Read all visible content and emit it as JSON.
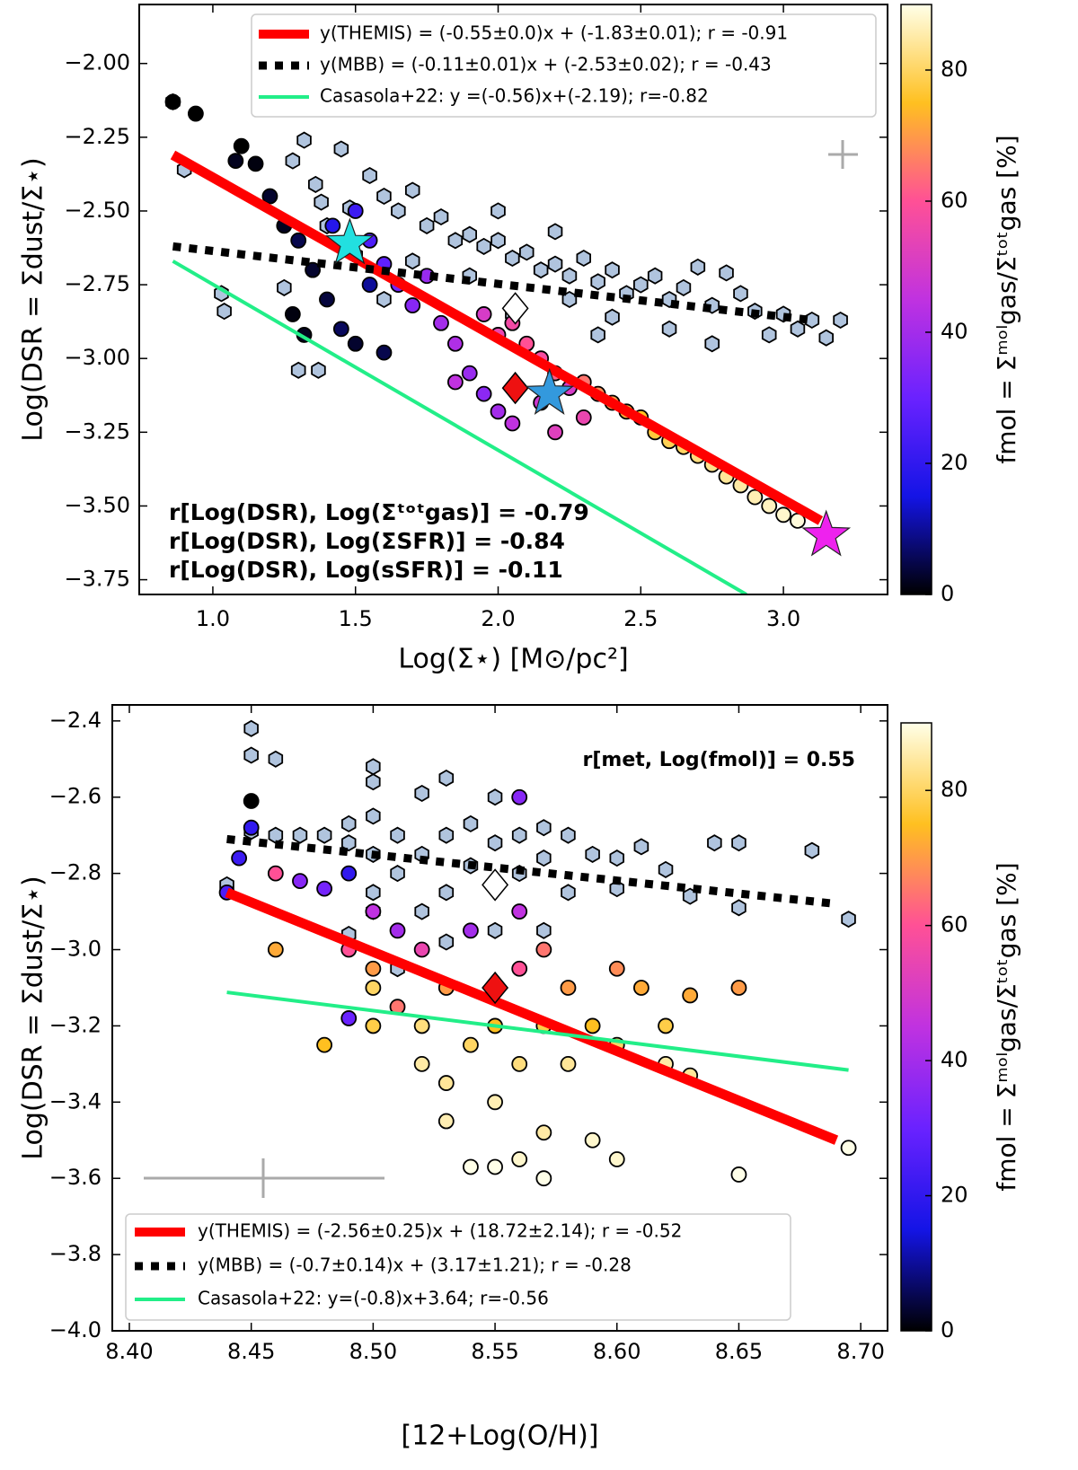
{
  "chart_data": [
    {
      "type": "scatter",
      "xlabel": "Log(Σ⋆) [M⊙/pc²]",
      "ylabel": "Log(DSR = Σdust/Σ⋆)",
      "xlim": [
        0.742,
        3.365
      ],
      "ylim": [
        -3.8,
        -1.8
      ],
      "xticks": [
        {
          "value": 1.0,
          "label": "1.0"
        },
        {
          "value": 1.5,
          "label": "1.5"
        },
        {
          "value": 2.0,
          "label": "2.0"
        },
        {
          "value": 2.5,
          "label": "2.5"
        },
        {
          "value": 3.0,
          "label": "3.0"
        }
      ],
      "yticks": [
        {
          "value": -2.0,
          "label": "−2.00"
        },
        {
          "value": -2.25,
          "label": "−2.25"
        },
        {
          "value": -2.5,
          "label": "−2.50"
        },
        {
          "value": -2.75,
          "label": "−2.75"
        },
        {
          "value": -3.0,
          "label": "−3.00"
        },
        {
          "value": -3.25,
          "label": "−3.25"
        },
        {
          "value": -3.5,
          "label": "−3.50"
        },
        {
          "value": -3.75,
          "label": "−3.75"
        }
      ],
      "legend": "upper right",
      "annotations": [
        "r[Log(DSR), Log(Σᵗᵒᵗgas)] =  -0.79",
        "r[Log(DSR), Log(ΣSFR)] =  -0.84",
        "r[Log(DSR), Log(sSFR)] =  -0.11"
      ],
      "colorbar": {
        "label": "fmol = Σᵐᵒˡgas/Σᵗᵒᵗgas [%]",
        "lim": [
          0,
          90
        ],
        "ticks": [
          0,
          20,
          40,
          60,
          80
        ],
        "cmap": [
          "#000000",
          "#1414e6",
          "#6a22ff",
          "#c032e0",
          "#ff5096",
          "#ffc020",
          "#ffffe8"
        ]
      },
      "series": [
        {
          "marker": "hexagon",
          "color": "#b0c4de",
          "x": [
            0.86,
            0.9,
            1.03,
            1.04,
            1.28,
            1.32,
            1.36,
            1.38,
            1.4,
            1.45,
            1.48,
            1.3,
            1.37,
            1.5,
            1.55,
            1.6,
            1.65,
            1.7,
            1.75,
            1.8,
            1.85,
            1.9,
            1.95,
            2.0,
            2.05,
            2.1,
            2.15,
            2.2,
            2.25,
            2.3,
            2.35,
            2.4,
            2.45,
            2.5,
            2.55,
            2.6,
            2.65,
            2.7,
            2.75,
            2.8,
            2.85,
            2.9,
            2.95,
            3.0,
            3.05,
            3.1,
            3.15,
            3.2,
            2.25,
            2.4,
            2.6,
            2.75,
            1.9,
            2.0,
            2.2,
            1.7,
            1.6,
            2.05,
            2.35,
            1.25
          ],
          "y": [
            -2.13,
            -2.36,
            -2.78,
            -2.84,
            -2.33,
            -2.26,
            -2.41,
            -2.47,
            -2.55,
            -2.29,
            -2.49,
            -3.04,
            -3.04,
            -2.65,
            -2.38,
            -2.45,
            -2.5,
            -2.43,
            -2.55,
            -2.52,
            -2.6,
            -2.58,
            -2.62,
            -2.6,
            -2.66,
            -2.64,
            -2.7,
            -2.68,
            -2.72,
            -2.66,
            -2.74,
            -2.7,
            -2.78,
            -2.75,
            -2.72,
            -2.8,
            -2.76,
            -2.69,
            -2.82,
            -2.71,
            -2.78,
            -2.84,
            -2.92,
            -2.85,
            -2.9,
            -2.87,
            -2.93,
            -2.87,
            -2.8,
            -2.86,
            -2.9,
            -2.95,
            -2.72,
            -2.5,
            -2.57,
            -2.67,
            -2.8,
            -2.85,
            -2.92,
            -2.76
          ]
        },
        {
          "marker": "circle",
          "x": [
            0.86,
            0.94,
            1.08,
            1.1,
            1.15,
            1.2,
            1.25,
            1.3,
            1.35,
            1.28,
            1.32,
            1.4,
            1.45,
            1.5,
            1.55,
            1.6,
            1.42,
            1.5,
            1.55,
            1.6,
            1.65,
            1.7,
            1.75,
            1.8,
            1.85,
            1.9,
            1.95,
            2.0,
            2.05,
            1.95,
            2.0,
            2.05,
            2.1,
            2.15,
            2.2,
            2.25,
            2.3,
            2.35,
            2.4,
            2.45,
            2.5,
            2.55,
            2.6,
            2.65,
            2.7,
            2.75,
            2.8,
            2.85,
            2.9,
            2.95,
            3.0,
            3.05,
            2.3,
            2.15,
            1.85,
            2.2
          ],
          "y": [
            -2.13,
            -2.17,
            -2.33,
            -2.28,
            -2.34,
            -2.45,
            -2.55,
            -2.6,
            -2.7,
            -2.85,
            -2.92,
            -2.8,
            -2.9,
            -2.95,
            -2.75,
            -2.98,
            -2.55,
            -2.5,
            -2.6,
            -2.68,
            -2.75,
            -2.82,
            -2.72,
            -2.88,
            -2.95,
            -3.05,
            -3.12,
            -3.18,
            -3.22,
            -2.85,
            -2.92,
            -2.88,
            -2.95,
            -3.0,
            -3.05,
            -3.1,
            -3.08,
            -3.12,
            -3.15,
            -3.18,
            -3.2,
            -3.25,
            -3.28,
            -3.3,
            -3.33,
            -3.36,
            -3.4,
            -3.43,
            -3.47,
            -3.5,
            -3.53,
            -3.55,
            -3.2,
            -3.15,
            -3.08,
            -3.25
          ],
          "c": [
            0,
            0,
            2,
            0,
            1,
            3,
            2,
            5,
            3,
            1,
            2,
            4,
            6,
            3,
            10,
            5,
            18,
            22,
            25,
            28,
            32,
            35,
            38,
            40,
            42,
            38,
            36,
            40,
            45,
            50,
            55,
            57,
            60,
            58,
            62,
            50,
            65,
            68,
            70,
            72,
            75,
            77,
            79,
            80,
            82,
            83,
            84,
            85,
            86,
            87,
            88,
            89,
            55,
            48,
            45,
            52
          ]
        },
        {
          "name": "y(THEMIS) = (-0.55±0.0)x + (-1.83±0.01); r = -0.91",
          "linestyle": "solid",
          "color": "#ff0000",
          "x": [
            0.86,
            3.13
          ],
          "y": [
            -2.31,
            -3.55
          ]
        },
        {
          "name": "y(MBB) = (-0.11±0.01)x + (-2.53±0.02); r = -0.43",
          "linestyle": "dotted",
          "color": "#000000",
          "x": [
            0.86,
            3.1
          ],
          "y": [
            -2.62,
            -2.87
          ]
        },
        {
          "name": "Casasola+22: y =(-0.56)x+(-2.19); r=-0.82",
          "linestyle": "solid",
          "color": "#22ee88",
          "x": [
            0.86,
            2.87
          ],
          "y": [
            -2.67,
            -3.8
          ]
        },
        {
          "marker": "diamond",
          "color": "#ffffff",
          "x": [
            2.06
          ],
          "y": [
            -2.83
          ]
        },
        {
          "marker": "diamond",
          "color": "#ee1111",
          "x": [
            2.06
          ],
          "y": [
            -3.1
          ]
        },
        {
          "marker": "star",
          "color": "#22e0e0",
          "x": [
            1.48
          ],
          "y": [
            -2.61
          ]
        },
        {
          "marker": "star",
          "color": "#3399dd",
          "x": [
            2.18
          ],
          "y": [
            -3.12
          ]
        },
        {
          "marker": "star",
          "color": "#ee22ee",
          "x": [
            3.15
          ],
          "y": [
            -3.6
          ]
        }
      ]
    },
    {
      "type": "scatter",
      "xlabel": "[12+Log(O/H)]",
      "ylabel": "Log(DSR = Σdust/Σ⋆)",
      "xlim": [
        8.393,
        8.711
      ],
      "ylim": [
        -4.0,
        -2.358
      ],
      "xticks": [
        {
          "value": 8.4,
          "label": "8.40"
        },
        {
          "value": 8.45,
          "label": "8.45"
        },
        {
          "value": 8.5,
          "label": "8.50"
        },
        {
          "value": 8.55,
          "label": "8.55"
        },
        {
          "value": 8.6,
          "label": "8.60"
        },
        {
          "value": 8.65,
          "label": "8.65"
        },
        {
          "value": 8.7,
          "label": "8.70"
        }
      ],
      "yticks": [
        {
          "value": -2.4,
          "label": "−2.4"
        },
        {
          "value": -2.6,
          "label": "−2.6"
        },
        {
          "value": -2.8,
          "label": "−2.8"
        },
        {
          "value": -3.0,
          "label": "−3.0"
        },
        {
          "value": -3.2,
          "label": "−3.2"
        },
        {
          "value": -3.4,
          "label": "−3.4"
        },
        {
          "value": -3.6,
          "label": "−3.6"
        },
        {
          "value": -3.8,
          "label": "−3.8"
        },
        {
          "value": -4.0,
          "label": "−4.0"
        }
      ],
      "legend": "lower left",
      "annotations": [
        "r[met, Log(fmol)] = 0.55"
      ],
      "colorbar": {
        "label": "fmol = Σᵐᵒˡgas/Σᵗᵒᵗgas [%]",
        "lim": [
          0,
          90
        ],
        "ticks": [
          0,
          20,
          40,
          60,
          80
        ],
        "cmap": [
          "#000000",
          "#1414e6",
          "#6a22ff",
          "#c032e0",
          "#ff5096",
          "#ffc020",
          "#ffffe8"
        ]
      },
      "series": [
        {
          "marker": "hexagon",
          "color": "#b0c4de",
          "x": [
            8.44,
            8.45,
            8.45,
            8.45,
            8.46,
            8.46,
            8.47,
            8.48,
            8.49,
            8.49,
            8.5,
            8.5,
            8.5,
            8.5,
            8.5,
            8.5,
            8.51,
            8.51,
            8.52,
            8.52,
            8.52,
            8.53,
            8.53,
            8.53,
            8.54,
            8.54,
            8.55,
            8.55,
            8.55,
            8.56,
            8.56,
            8.57,
            8.57,
            8.58,
            8.58,
            8.59,
            8.6,
            8.6,
            8.61,
            8.62,
            8.63,
            8.64,
            8.65,
            8.65,
            8.68,
            8.695,
            8.49,
            8.51,
            8.53,
            8.57
          ],
          "y": [
            -2.83,
            -2.42,
            -2.49,
            -2.69,
            -2.5,
            -2.7,
            -2.7,
            -2.7,
            -2.67,
            -2.72,
            -2.52,
            -2.56,
            -2.65,
            -2.75,
            -2.85,
            -2.9,
            -2.7,
            -2.8,
            -2.59,
            -2.75,
            -2.9,
            -2.55,
            -2.7,
            -2.85,
            -2.67,
            -2.78,
            -2.6,
            -2.72,
            -2.95,
            -2.7,
            -2.8,
            -2.68,
            -2.76,
            -2.7,
            -2.85,
            -2.75,
            -2.76,
            -2.84,
            -2.73,
            -2.79,
            -2.86,
            -2.72,
            -2.72,
            -2.89,
            -2.74,
            -2.92,
            -2.96,
            -3.05,
            -2.98,
            -2.95
          ]
        },
        {
          "marker": "circle",
          "x": [
            8.45,
            8.45,
            8.445,
            8.44,
            8.46,
            8.46,
            8.47,
            8.48,
            8.48,
            8.49,
            8.49,
            8.49,
            8.5,
            8.5,
            8.5,
            8.5,
            8.51,
            8.51,
            8.52,
            8.52,
            8.52,
            8.53,
            8.53,
            8.53,
            8.54,
            8.54,
            8.54,
            8.55,
            8.55,
            8.55,
            8.56,
            8.56,
            8.56,
            8.56,
            8.56,
            8.57,
            8.57,
            8.57,
            8.57,
            8.58,
            8.58,
            8.59,
            8.59,
            8.6,
            8.6,
            8.61,
            8.62,
            8.62,
            8.63,
            8.63,
            8.65,
            8.65,
            8.695,
            8.6
          ],
          "y": [
            -2.61,
            -2.68,
            -2.76,
            -2.85,
            -2.8,
            -3.0,
            -2.82,
            -2.84,
            -3.25,
            -2.8,
            -3.0,
            -3.18,
            -2.9,
            -3.05,
            -3.1,
            -3.2,
            -2.95,
            -3.15,
            -3.0,
            -3.2,
            -3.3,
            -3.1,
            -3.35,
            -3.45,
            -2.95,
            -3.25,
            -3.57,
            -3.2,
            -3.4,
            -3.57,
            -2.6,
            -2.9,
            -3.05,
            -3.3,
            -3.55,
            -3.0,
            -3.2,
            -3.48,
            -3.6,
            -3.1,
            -3.3,
            -3.2,
            -3.5,
            -3.05,
            -3.25,
            -3.1,
            -3.2,
            -3.3,
            -3.12,
            -3.33,
            -3.1,
            -3.59,
            -3.52,
            -3.55
          ],
          "c": [
            0,
            20,
            22,
            25,
            60,
            72,
            35,
            32,
            75,
            20,
            60,
            30,
            45,
            70,
            80,
            78,
            40,
            65,
            55,
            82,
            85,
            70,
            84,
            86,
            40,
            80,
            90,
            75,
            86,
            90,
            35,
            45,
            60,
            82,
            88,
            65,
            78,
            85,
            90,
            70,
            84,
            75,
            88,
            68,
            80,
            72,
            78,
            85,
            72,
            84,
            70,
            90,
            90,
            88
          ]
        },
        {
          "name": "y(THEMIS) = (-2.56±0.25)x + (18.72±2.14); r = -0.52",
          "linestyle": "solid",
          "color": "#ff0000",
          "x": [
            8.44,
            8.69
          ],
          "y": [
            -2.85,
            -3.5
          ]
        },
        {
          "name": "y(MBB) = (-0.7±0.14)x + (3.17±1.21); r = -0.28",
          "linestyle": "dotted",
          "color": "#000000",
          "x": [
            8.44,
            8.69
          ],
          "y": [
            -2.71,
            -2.88
          ]
        },
        {
          "name": "Casasola+22: y=(-0.8)x+3.64; r=-0.56",
          "linestyle": "solid",
          "color": "#22ee88",
          "x": [
            8.44,
            8.695
          ],
          "y": [
            -3.112,
            -3.316
          ]
        },
        {
          "marker": "diamond",
          "color": "#ffffff",
          "x": [
            8.55
          ],
          "y": [
            -2.83
          ]
        },
        {
          "marker": "diamond",
          "color": "#ee1111",
          "x": [
            8.55
          ],
          "y": [
            -3.1
          ]
        }
      ]
    }
  ]
}
